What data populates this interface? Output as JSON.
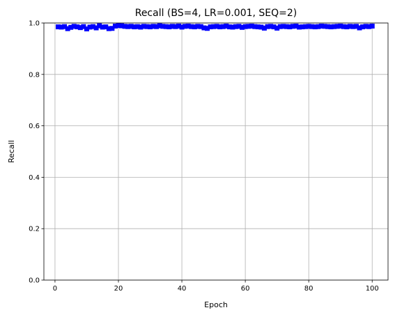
{
  "chart_data": {
    "type": "line",
    "title": "Recall (BS=4, LR=0.001, SEQ=2)",
    "xlabel": "Epoch",
    "ylabel": "Recall",
    "xlim": [
      -3.5,
      105
    ],
    "ylim": [
      0.0,
      1.0
    ],
    "xticks": [
      0,
      20,
      40,
      60,
      80,
      100
    ],
    "yticks": [
      0.0,
      0.2,
      0.4,
      0.6,
      0.8,
      1.0
    ],
    "xtick_labels": [
      "0",
      "20",
      "40",
      "60",
      "80",
      "100"
    ],
    "ytick_labels": [
      "0.0",
      "0.2",
      "0.4",
      "0.6",
      "0.8",
      "1.0"
    ],
    "grid": true,
    "marker": "square",
    "series": [
      {
        "color": "#0000ff",
        "x": [
          1,
          2,
          3,
          4,
          5,
          6,
          7,
          8,
          9,
          10,
          11,
          12,
          13,
          14,
          15,
          16,
          17,
          18,
          19,
          20,
          21,
          22,
          23,
          24,
          25,
          26,
          27,
          28,
          29,
          30,
          31,
          32,
          33,
          34,
          35,
          36,
          37,
          38,
          39,
          40,
          41,
          42,
          43,
          44,
          45,
          46,
          47,
          48,
          49,
          50,
          51,
          52,
          53,
          54,
          55,
          56,
          57,
          58,
          59,
          60,
          61,
          62,
          63,
          64,
          65,
          66,
          67,
          68,
          69,
          70,
          71,
          72,
          73,
          74,
          75,
          76,
          77,
          78,
          79,
          80,
          81,
          82,
          83,
          84,
          85,
          86,
          87,
          88,
          89,
          90,
          91,
          92,
          93,
          94,
          95,
          96,
          97,
          98,
          99,
          100
        ],
        "values": [
          0.985,
          0.984,
          0.986,
          0.978,
          0.983,
          0.987,
          0.985,
          0.982,
          0.986,
          0.977,
          0.984,
          0.986,
          0.981,
          0.989,
          0.984,
          0.985,
          0.978,
          0.979,
          0.988,
          0.99,
          0.989,
          0.987,
          0.986,
          0.987,
          0.985,
          0.986,
          0.984,
          0.987,
          0.986,
          0.985,
          0.987,
          0.986,
          0.989,
          0.987,
          0.986,
          0.985,
          0.987,
          0.986,
          0.988,
          0.984,
          0.987,
          0.988,
          0.986,
          0.985,
          0.987,
          0.986,
          0.981,
          0.979,
          0.985,
          0.986,
          0.987,
          0.985,
          0.986,
          0.988,
          0.985,
          0.984,
          0.986,
          0.987,
          0.983,
          0.986,
          0.987,
          0.988,
          0.986,
          0.985,
          0.984,
          0.98,
          0.986,
          0.987,
          0.985,
          0.98,
          0.986,
          0.987,
          0.986,
          0.985,
          0.987,
          0.988,
          0.984,
          0.985,
          0.986,
          0.987,
          0.986,
          0.985,
          0.986,
          0.988,
          0.987,
          0.986,
          0.985,
          0.986,
          0.987,
          0.988,
          0.986,
          0.985,
          0.987,
          0.986,
          0.987,
          0.981,
          0.985,
          0.987,
          0.986,
          0.988
        ]
      }
    ]
  }
}
